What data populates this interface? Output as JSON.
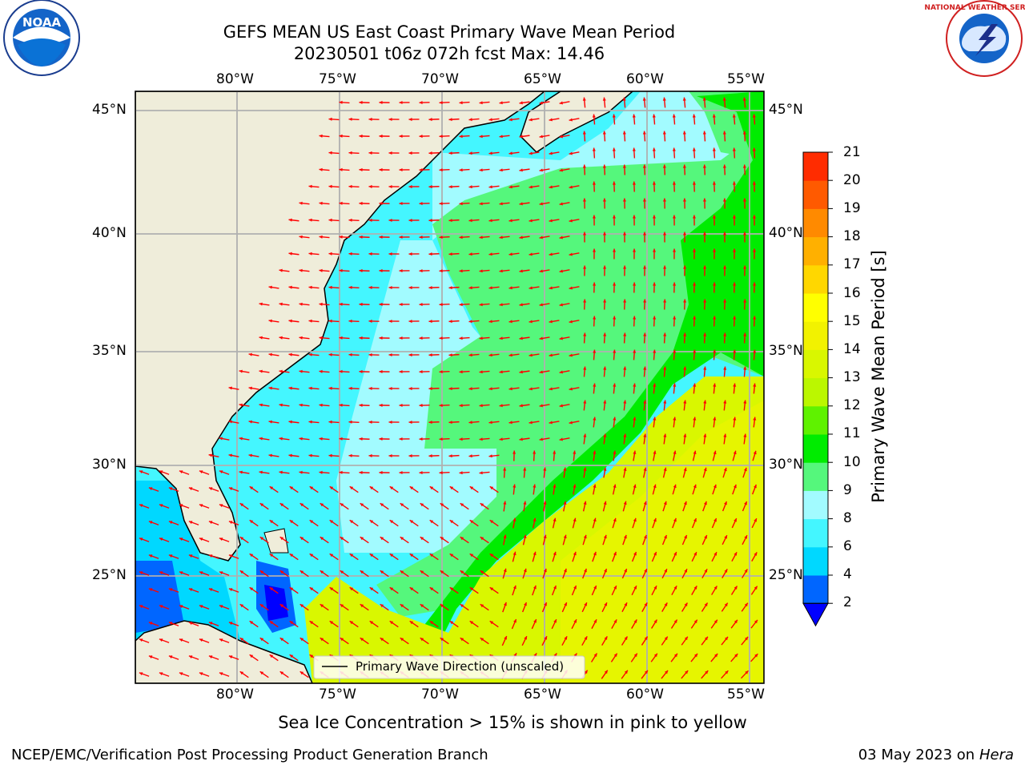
{
  "title": {
    "line1": "GEFS MEAN US East Coast Primary Wave Mean Period",
    "line2": "20230501 t06z 072h fcst   Max: 14.46"
  },
  "logos": {
    "left": "NOAA",
    "right": "NATIONAL WEATHER SERVICE"
  },
  "map": {
    "lon_labels": [
      "80°W",
      "75°W",
      "70°W",
      "65°W",
      "60°W",
      "55°W"
    ],
    "lat_labels": [
      "45°N",
      "40°N",
      "35°N",
      "30°N",
      "25°N"
    ],
    "legend_label": "Primary Wave Direction (unscaled)",
    "colors": {
      "land": "#efedda",
      "arrow": "#ff0000",
      "grid": "#b0b0b0"
    }
  },
  "colorbar": {
    "label": "Primary Wave Mean Period [s]",
    "ticks": [
      "2",
      "4",
      "6",
      "8",
      "9",
      "10",
      "11",
      "12",
      "13",
      "14",
      "15",
      "16",
      "17",
      "18",
      "19",
      "20",
      "21"
    ],
    "colors": [
      "#0066ff",
      "#00d8ff",
      "#44f6ff",
      "#a2fbff",
      "#55f77c",
      "#00ec00",
      "#5ff200",
      "#bbf700",
      "#d9f700",
      "#f2f200",
      "#ffff00",
      "#ffd700",
      "#ffb000",
      "#ff8a00",
      "#ff5a00",
      "#ff2c00",
      "#ff0000"
    ],
    "under_color": "#0000ff"
  },
  "caption": "Sea Ice Concentration > 15% is shown in pink to yellow",
  "footer": {
    "left": "NCEP/EMC/Verification Post Processing Product Generation Branch",
    "right_date": "03 May 2023 on",
    "right_host": "Hera"
  }
}
